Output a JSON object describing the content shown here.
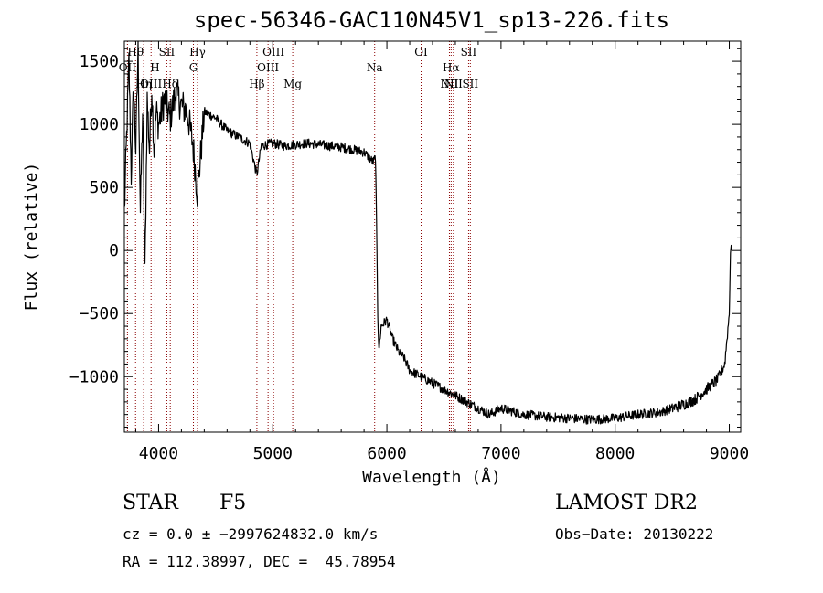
{
  "chart_data": {
    "type": "line",
    "title": "spec-56346-GAC110N45V1_sp13-226.fits",
    "xlabel": "Wavelength (Å)",
    "ylabel": "Flux (relative)",
    "xlim": [
      3700,
      9100
    ],
    "ylim": [
      -1440,
      1660
    ],
    "xticks": [
      4000,
      5000,
      6000,
      7000,
      8000,
      9000
    ],
    "xtick_labels": [
      "4000",
      "5000",
      "6000",
      "7000",
      "8000",
      "9000"
    ],
    "yticks": [
      1500,
      1000,
      500,
      0,
      -500,
      -1000
    ],
    "ytick_labels": [
      "1500",
      "1000",
      "500",
      "0",
      "−500",
      "−1000"
    ],
    "grid": false,
    "line_color": "#000000",
    "marker_color": "#8b0000",
    "spectral_lines": [
      {
        "wavelength": 3727,
        "label": "OII",
        "row": 2
      },
      {
        "wavelength": 3798,
        "label": "Hθ",
        "row": 1
      },
      {
        "wavelength": 3869,
        "label": "Hη",
        "row": 3
      },
      {
        "wavelength": 3934,
        "label": "OIII",
        "row": 3
      },
      {
        "wavelength": 3968,
        "label": "H",
        "row": 2
      },
      {
        "wavelength": 4072,
        "label": "SII",
        "row": 1
      },
      {
        "wavelength": 4102,
        "label": "Hδ",
        "row": 3
      },
      {
        "wavelength": 4305,
        "label": "G",
        "row": 2
      },
      {
        "wavelength": 4341,
        "label": "Hγ",
        "row": 1
      },
      {
        "wavelength": 4861,
        "label": "Hβ",
        "row": 3
      },
      {
        "wavelength": 4959,
        "label": "OIII",
        "row": 2
      },
      {
        "wavelength": 5007,
        "label": "OIII",
        "row": 1
      },
      {
        "wavelength": 5175,
        "label": "Mg",
        "row": 3
      },
      {
        "wavelength": 5893,
        "label": "Na",
        "row": 2
      },
      {
        "wavelength": 6300,
        "label": "OI",
        "row": 1
      },
      {
        "wavelength": 6548,
        "label": "NII",
        "row": 3
      },
      {
        "wavelength": 6563,
        "label": "Hα",
        "row": 2
      },
      {
        "wavelength": 6583,
        "label": "NII",
        "row": 3
      },
      {
        "wavelength": 6716,
        "label": "SII",
        "row": 1
      },
      {
        "wavelength": 6731,
        "label": "SII",
        "row": 3
      }
    ],
    "spectrum": {
      "x": [
        3700,
        3720,
        3740,
        3760,
        3780,
        3800,
        3820,
        3840,
        3860,
        3880,
        3900,
        3920,
        3940,
        3960,
        3980,
        4000,
        4050,
        4100,
        4150,
        4200,
        4250,
        4300,
        4340,
        4400,
        4500,
        4600,
        4700,
        4800,
        4860,
        4900,
        5000,
        5100,
        5200,
        5300,
        5400,
        5500,
        5600,
        5700,
        5800,
        5880,
        5900,
        5910,
        5920,
        5930,
        5950,
        6000,
        6050,
        6100,
        6150,
        6200,
        6300,
        6400,
        6500,
        6600,
        6700,
        6800,
        6900,
        7000,
        7200,
        7400,
        7600,
        7800,
        8000,
        8200,
        8400,
        8600,
        8700,
        8800,
        8900,
        8960,
        9000,
        9010,
        9020
      ],
      "y": [
        300,
        900,
        1500,
        600,
        1300,
        800,
        1600,
        300,
        1100,
        -200,
        1200,
        800,
        1300,
        800,
        1100,
        1000,
        1200,
        1050,
        1250,
        1150,
        1100,
        850,
        450,
        1100,
        1050,
        950,
        900,
        850,
        600,
        830,
        850,
        830,
        840,
        850,
        840,
        830,
        820,
        800,
        780,
        700,
        740,
        200,
        -500,
        -800,
        -600,
        -550,
        -700,
        -800,
        -850,
        -950,
        -1000,
        -1050,
        -1100,
        -1150,
        -1200,
        -1250,
        -1300,
        -1250,
        -1300,
        -1320,
        -1330,
        -1340,
        -1330,
        -1300,
        -1280,
        -1220,
        -1180,
        -1100,
        -1020,
        -900,
        -500,
        0,
        0
      ]
    },
    "info": {
      "class_label": "STAR",
      "subclass": "F5",
      "survey": "LAMOST DR2",
      "cz_text": "cz = 0.0 ± −2997624832.0 km/s",
      "obs_date_text": "Obs−Date: 20130222",
      "radec_text": "RA = 112.38997, DEC =  45.78954"
    }
  }
}
